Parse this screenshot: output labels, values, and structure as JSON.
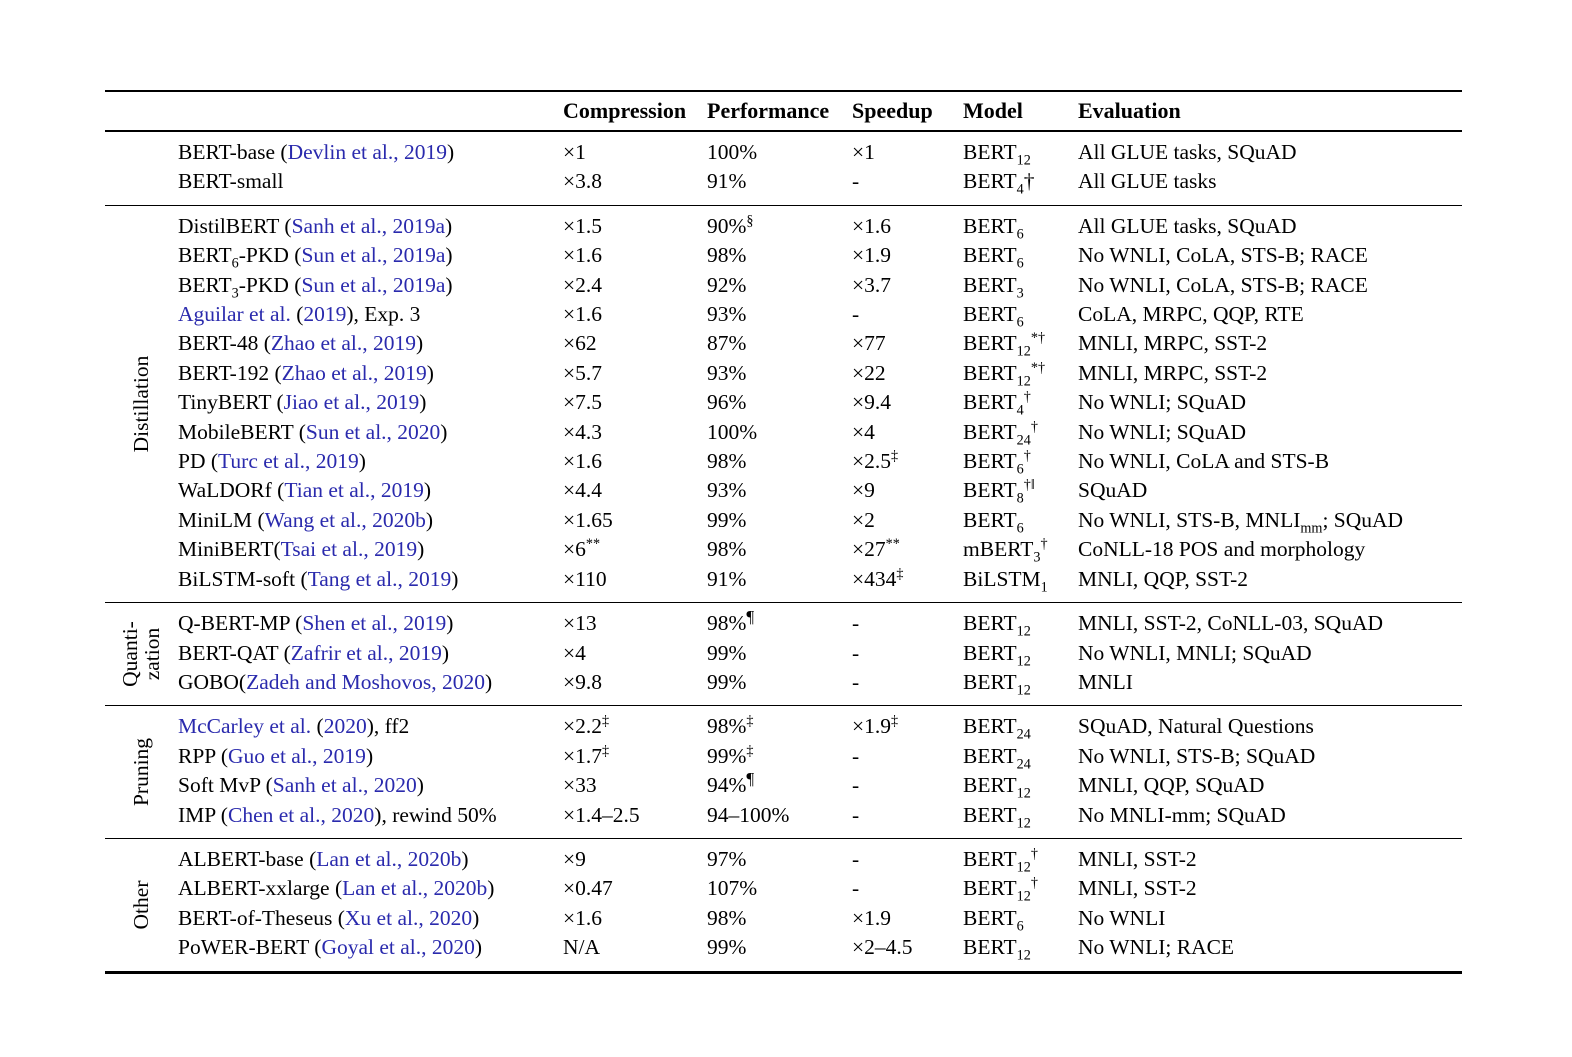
{
  "colors": {
    "link": "#2a2aad",
    "text": "#000000",
    "rule": "#000000"
  },
  "header": {
    "compression": "Compression",
    "performance": "Performance",
    "speedup": "Speedup",
    "model": "Model",
    "evaluation": "Evaluation"
  },
  "groups": [
    {
      "label_lines": [],
      "rows": [
        {
          "name": "BERT-base (~Devlin et al., 2019~)",
          "compression": "×1",
          "performance": "100%",
          "speedup": "×1",
          "model": "BERT_{12}",
          "evaluation": "All GLUE tasks, SQuAD"
        },
        {
          "name": "BERT-small",
          "compression": "×3.8",
          "performance": "91%",
          "speedup": "-",
          "model": "BERT_{4}†",
          "evaluation": "All GLUE tasks"
        }
      ]
    },
    {
      "label_lines": [
        "Distillation"
      ],
      "rows": [
        {
          "name": "DistilBERT (~Sanh et al., 2019a~)",
          "compression": "×1.5",
          "performance": "90%^{§}",
          "speedup": "×1.6",
          "model": "BERT_{6}",
          "evaluation": "All GLUE tasks, SQuAD"
        },
        {
          "name": "BERT_{6}-PKD (~Sun et al., 2019a~)",
          "compression": "×1.6",
          "performance": "98%",
          "speedup": "×1.9",
          "model": "BERT_{6}",
          "evaluation": "No WNLI, CoLA, STS-B; RACE"
        },
        {
          "name": "BERT_{3}-PKD (~Sun et al., 2019a~)",
          "compression": "×2.4",
          "performance": "92%",
          "speedup": "×3.7",
          "model": "BERT_{3}",
          "evaluation": "No WNLI, CoLA, STS-B; RACE"
        },
        {
          "name": "~Aguilar et al.~ (~2019~), Exp. 3",
          "compression": "×1.6",
          "performance": "93%",
          "speedup": "-",
          "model": "BERT_{6}",
          "evaluation": "CoLA, MRPC, QQP, RTE"
        },
        {
          "name": "BERT-48 (~Zhao et al., 2019~)",
          "compression": "×62",
          "performance": "87%",
          "speedup": "×77",
          "model": "BERT_{12}^{*†}",
          "evaluation": "MNLI, MRPC, SST-2"
        },
        {
          "name": "BERT-192 (~Zhao et al., 2019~)",
          "compression": "×5.7",
          "performance": "93%",
          "speedup": "×22",
          "model": "BERT_{12}^{*†}",
          "evaluation": "MNLI, MRPC, SST-2"
        },
        {
          "name": "TinyBERT (~Jiao et al., 2019~)",
          "compression": "×7.5",
          "performance": "96%",
          "speedup": "×9.4",
          "model": "BERT_{4}^{†}",
          "evaluation": "No WNLI; SQuAD"
        },
        {
          "name": "MobileBERT (~Sun et al., 2020~)",
          "compression": "×4.3",
          "performance": "100%",
          "speedup": "×4",
          "model": "BERT_{24}^{†}",
          "evaluation": "No WNLI; SQuAD"
        },
        {
          "name": "PD (~Turc et al., 2019~)",
          "compression": "×1.6",
          "performance": "98%",
          "speedup": "×2.5^{‡}",
          "model": "BERT_{6}^{†}",
          "evaluation": "No WNLI, CoLA and STS-B"
        },
        {
          "name": "WaLDORf (~Tian et al., 2019~)",
          "compression": "×4.4",
          "performance": "93%",
          "speedup": "×9",
          "model": "BERT_{8}^{†‖}",
          "evaluation": "SQuAD"
        },
        {
          "name": "MiniLM (~Wang et al., 2020b~)",
          "compression": "×1.65",
          "performance": "99%",
          "speedup": "×2",
          "model": "BERT_{6}",
          "evaluation": "No WNLI, STS-B, MNLI_{mm}; SQuAD"
        },
        {
          "name": "MiniBERT(~Tsai et al., 2019~)",
          "compression": "×6^{**}",
          "performance": "98%",
          "speedup": "×27^{**}",
          "model": "mBERT_{3}^{†}",
          "evaluation": "CoNLL-18 POS and morphology"
        },
        {
          "name": "BiLSTM-soft (~Tang et al., 2019~)",
          "compression": "×110",
          "performance": "91%",
          "speedup": "×434^{‡}",
          "model": "BiLSTM_{1}",
          "evaluation": "MNLI, QQP, SST-2"
        }
      ]
    },
    {
      "label_lines": [
        "Quanti-",
        "zation"
      ],
      "rows": [
        {
          "name": "Q-BERT-MP (~Shen et al., 2019~)",
          "compression": "×13",
          "performance": "98%^{¶}",
          "speedup": "-",
          "model": "BERT_{12}",
          "evaluation": "MNLI, SST-2, CoNLL-03, SQuAD"
        },
        {
          "name": "BERT-QAT (~Zafrir et al., 2019~)",
          "compression": "×4",
          "performance": "99%",
          "speedup": "-",
          "model": "BERT_{12}",
          "evaluation": "No WNLI, MNLI; SQuAD"
        },
        {
          "name": "GOBO(~Zadeh and Moshovos, 2020~)",
          "compression": "×9.8",
          "performance": "99%",
          "speedup": "-",
          "model": "BERT_{12}",
          "evaluation": "MNLI"
        }
      ]
    },
    {
      "label_lines": [
        "Pruning"
      ],
      "rows": [
        {
          "name": "~McCarley et al.~ (~2020~), ff2",
          "compression": "×2.2^{‡}",
          "performance": "98%^{‡}",
          "speedup": "×1.9^{‡}",
          "model": "BERT_{24}",
          "evaluation": "SQuAD, Natural Questions"
        },
        {
          "name": "RPP (~Guo et al., 2019~)",
          "compression": "×1.7^{‡}",
          "performance": "99%^{‡}",
          "speedup": "-",
          "model": "BERT_{24}",
          "evaluation": "No WNLI, STS-B; SQuAD"
        },
        {
          "name": "Soft MvP (~Sanh et al., 2020~)",
          "compression": "×33",
          "performance": "94%^{¶}",
          "speedup": "-",
          "model": "BERT_{12}",
          "evaluation": "MNLI, QQP, SQuAD"
        },
        {
          "name": "IMP (~Chen et al., 2020~), rewind 50%",
          "compression": "×1.4–2.5",
          "performance": "94–100%",
          "speedup": "-",
          "model": "BERT_{12}",
          "evaluation": "No MNLI-mm; SQuAD"
        }
      ]
    },
    {
      "label_lines": [
        "Other"
      ],
      "rows": [
        {
          "name": "ALBERT-base (~Lan et al., 2020b~)",
          "compression": "×9",
          "performance": "97%",
          "speedup": "-",
          "model": "BERT_{12}^{†}",
          "evaluation": "MNLI, SST-2"
        },
        {
          "name": "ALBERT-xxlarge (~Lan et al., 2020b~)",
          "compression": "×0.47",
          "performance": "107%",
          "speedup": "-",
          "model": "BERT_{12}^{†}",
          "evaluation": "MNLI, SST-2"
        },
        {
          "name": "BERT-of-Theseus (~Xu et al., 2020~)",
          "compression": "×1.6",
          "performance": "98%",
          "speedup": "×1.9",
          "model": "BERT_{6}",
          "evaluation": "No WNLI"
        },
        {
          "name": "PoWER-BERT (~Goyal et al., 2020~)",
          "compression": "N/A",
          "performance": "99%",
          "speedup": "×2–4.5",
          "model": "BERT_{12}",
          "evaluation": "No WNLI; RACE"
        }
      ]
    }
  ]
}
